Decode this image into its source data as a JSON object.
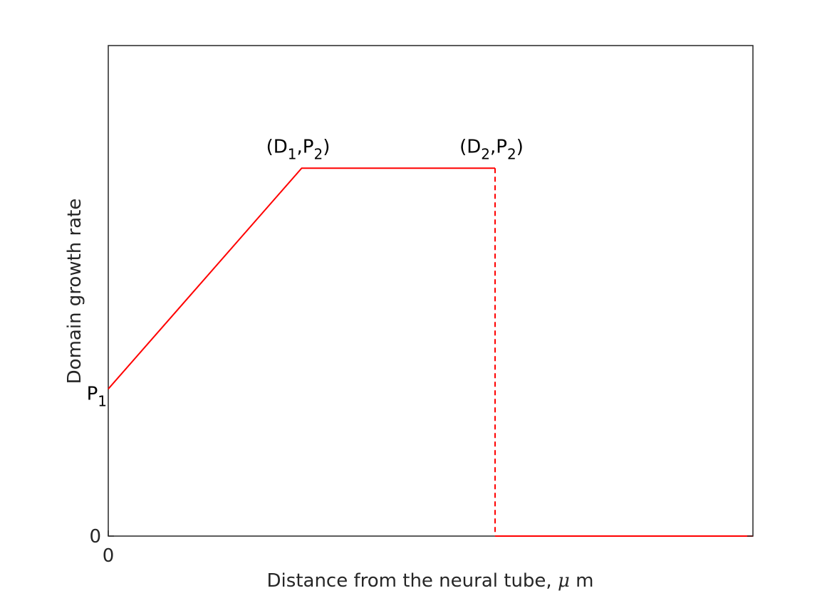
{
  "chart_data": {
    "type": "line",
    "title": "",
    "xlabel_prefix": "Distance from the neural tube, ",
    "xlabel_unit_symbol": "μ",
    "xlabel_unit_suffix": " m",
    "ylabel": "Domain growth rate",
    "x_ticks": [
      {
        "value": 0,
        "label": "0"
      }
    ],
    "y_ticks": [
      {
        "value": 0,
        "label": "0"
      }
    ],
    "grid": false,
    "legend": "none",
    "xlim": [
      0,
      1
    ],
    "ylim": [
      0,
      1
    ],
    "series": [
      {
        "style": "solid",
        "color": "#ff0000",
        "points": [
          [
            0,
            0.3
          ],
          [
            0.3,
            0.75
          ],
          [
            0.6,
            0.75
          ]
        ]
      },
      {
        "style": "dashed",
        "color": "#ff0000",
        "points": [
          [
            0.6,
            0.75
          ],
          [
            0.6,
            0.0
          ]
        ]
      },
      {
        "style": "solid",
        "color": "#ff0000",
        "points": [
          [
            0.6,
            0.0
          ],
          [
            1.0,
            0.0
          ]
        ]
      }
    ],
    "annotations": [
      {
        "x": 0.0,
        "y": 0.3,
        "base": "P",
        "sub": "1",
        "anchor": "end"
      },
      {
        "x": 0.3,
        "y": 0.75,
        "parts": [
          [
            "(D",
            ""
          ],
          [
            "1",
            "sub"
          ],
          [
            ",P",
            ""
          ],
          [
            "2",
            "sub"
          ],
          [
            ")",
            ""
          ]
        ],
        "anchor": "middle"
      },
      {
        "x": 0.6,
        "y": 0.75,
        "parts": [
          [
            "(D",
            ""
          ],
          [
            "2",
            "sub"
          ],
          [
            ",P",
            ""
          ],
          [
            "2",
            "sub"
          ],
          [
            ")",
            ""
          ]
        ],
        "anchor": "middle"
      }
    ]
  }
}
